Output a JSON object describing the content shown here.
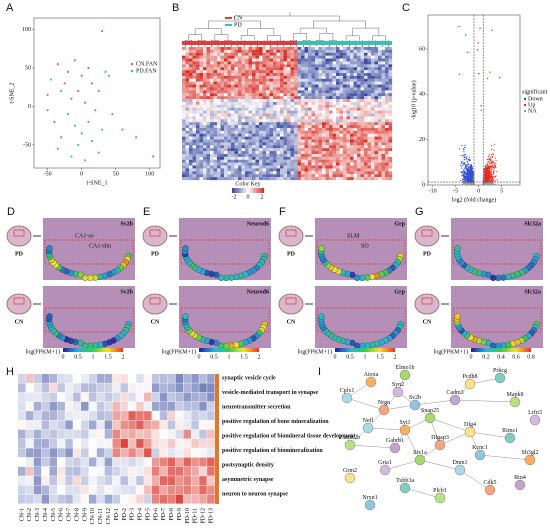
{
  "A": {
    "label": "A",
    "xlabel": "t-SNE_1",
    "ylabel": "t-SNE_2",
    "xlim": [
      -70,
      115
    ],
    "ylim": [
      -80,
      115
    ],
    "xticks": [
      -50,
      0,
      50,
      100
    ],
    "yticks": [
      -50,
      0,
      50,
      100
    ],
    "series": [
      {
        "name": "CN.FAN",
        "color": "#e8665c",
        "x": [
          -35,
          -20,
          -10,
          0,
          10,
          -25,
          -5,
          15,
          25,
          -15,
          5,
          30,
          -40,
          -50,
          20,
          -30,
          60,
          105
        ],
        "y": [
          55,
          45,
          60,
          40,
          50,
          30,
          20,
          30,
          20,
          10,
          5,
          98,
          -20,
          15,
          -5,
          -40,
          -30,
          -65
        ]
      },
      {
        "name": "PD.FAN",
        "color": "#3bbfb5",
        "x": [
          -45,
          -30,
          -20,
          -10,
          0,
          10,
          -5,
          15,
          25,
          35,
          40,
          -15,
          5,
          -35,
          30,
          -50,
          45,
          80
        ],
        "y": [
          35,
          20,
          -10,
          -25,
          -35,
          -20,
          -50,
          -45,
          -60,
          45,
          40,
          -65,
          -70,
          -55,
          -30,
          -5,
          -10,
          -40
        ]
      }
    ]
  },
  "B": {
    "label": "B",
    "legend": [
      {
        "name": "CN",
        "color": "#e03a3a"
      },
      {
        "name": "PD",
        "color": "#3bbfb5"
      }
    ],
    "key_title": "Color Key",
    "key_ticks": [
      "-2",
      "0",
      "2"
    ]
  },
  "C": {
    "label": "C",
    "xlabel": "log2 (fold change)",
    "ylabel": "-log10 (p-value)",
    "xlim": [
      -11,
      9
    ],
    "ylim": [
      0,
      75
    ],
    "xticks": [
      -10,
      -5,
      0,
      5
    ],
    "yticks": [
      0,
      20,
      40,
      60
    ],
    "legend_title": "significant",
    "legend": [
      {
        "name": "Down",
        "color": "#2f4fd6"
      },
      {
        "name": "Up",
        "color": "#e8261f"
      },
      {
        "name": "NA",
        "color": "#9a9a9a"
      }
    ]
  },
  "genes": [
    {
      "label": "D",
      "gene": "Sv2b",
      "annotations": [
        "CA1-so",
        "CA1-slm"
      ],
      "cbar_title": "log(FPKM+1)",
      "cbar_ticks": [
        "0",
        "0.5",
        "1",
        "1.5",
        "2"
      ]
    },
    {
      "label": "E",
      "gene": "Neurod6",
      "annotations": [],
      "cbar_title": "log(FPKM+1)",
      "cbar_ticks": [
        "0",
        "0.5",
        "1",
        "1.5",
        "2"
      ]
    },
    {
      "label": "F",
      "gene": "Grp",
      "annotations": [
        "SLM",
        "SO"
      ],
      "cbar_title": "log(FPKM+1)",
      "cbar_ticks": [
        "0",
        "0.5",
        "1",
        "1.5",
        "2"
      ]
    },
    {
      "label": "G",
      "gene": "Slc32a",
      "annotations": [],
      "cbar_title": "log(FPKM+1)",
      "cbar_ticks": [
        "0",
        "0.2",
        "0.4",
        "0.6",
        "0.8"
      ]
    }
  ],
  "groups": [
    "PD",
    "CN"
  ],
  "H": {
    "label": "H",
    "columns": [
      "CN-1",
      "CN-2",
      "CN-3",
      "CN-4",
      "CN-5",
      "CN-6",
      "CN-7",
      "CN-8",
      "CN-9",
      "CN-10",
      "CN-11",
      "CN-12",
      "PD-1",
      "PD-2",
      "PD-3",
      "PD-4",
      "PD-5",
      "PD-6",
      "PD-7",
      "PD-8",
      "PD-9",
      "PD-10",
      "PD-11",
      "PD-12",
      "PD-13"
    ],
    "terms": [
      "synaptic vesicle cycle",
      "vesicle-mediated transport in synapse",
      "neurotransmitter secretion",
      "positive regulation of bone mineralization",
      "positive regulation of biomineral tissue development",
      "positive regulation of biomineralization",
      "postsynaptic density",
      "asymmetric synapse",
      "neuron to neuron synapse"
    ]
  },
  "I": {
    "label": "I",
    "nodes": [
      "Elmo1b",
      "Atoxa",
      "Cplx1",
      "Syn2",
      "Pcdh8",
      "Prkcg",
      "Nrgn",
      "Cadm3",
      "Mapk8",
      "Sv2b",
      "Snap25",
      "Syt1",
      "Nefl",
      "Lrfn3",
      "Dlg4",
      "Rims1",
      "Dlgap3",
      "Gabrb1",
      "Camk2b",
      "Kcnc1",
      "Stx1a",
      "Sh3gl2",
      "Dnm1",
      "Gria1",
      "Grm2",
      "Tubb3a",
      "Cdk5",
      "Rtn4",
      "Plcb1",
      "Nrxn1"
    ]
  }
}
